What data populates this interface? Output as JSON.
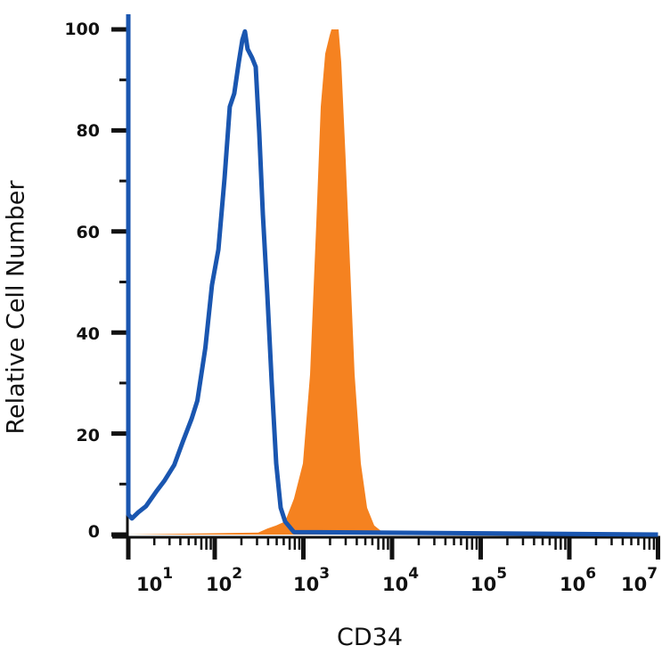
{
  "chart_data": {
    "type": "area",
    "title": "",
    "xlabel": "CD34",
    "ylabel": "Relative Cell Number",
    "x_scale": "log",
    "xlim": [
      10,
      10000000
    ],
    "ylim": [
      0,
      100
    ],
    "grid": false,
    "yticks": [
      "0",
      "20",
      "40",
      "60",
      "80",
      "100"
    ],
    "xticks": [
      {
        "base": "10",
        "exp": "1"
      },
      {
        "base": "10",
        "exp": "2"
      },
      {
        "base": "10",
        "exp": "3"
      },
      {
        "base": "10",
        "exp": "4"
      },
      {
        "base": "10",
        "exp": "5"
      },
      {
        "base": "10",
        "exp": "6"
      },
      {
        "base": "10",
        "exp": "7"
      }
    ],
    "series": [
      {
        "style": "outline",
        "color": "#1a56b0",
        "x": [
          10,
          10,
          11,
          13,
          16,
          21,
          26,
          34,
          43,
          54,
          63,
          78,
          93,
          110,
          129,
          148,
          166,
          187,
          205,
          219,
          235,
          264,
          290,
          318,
          349,
          392,
          440,
          494,
          554,
          622,
          783,
          10000000
        ],
        "y": [
          103,
          4,
          3.2,
          4.4,
          5.6,
          8.5,
          10.6,
          13.8,
          18.5,
          22.9,
          26.5,
          37,
          49.4,
          56.4,
          70.5,
          84.7,
          87.3,
          93.5,
          97.9,
          99.6,
          96.1,
          94.4,
          92.6,
          79.4,
          63.5,
          47.6,
          30,
          14.1,
          5.3,
          2.6,
          0.5,
          0
        ]
      },
      {
        "style": "filled",
        "color": "#f58220",
        "x": [
          10,
          309,
          392,
          494,
          622,
          783,
          988,
          1189,
          1400,
          1571,
          1763,
          1981,
          2074,
          2494,
          2673,
          2999,
          3370,
          3783,
          4448,
          5231,
          6290,
          7921,
          10000
        ],
        "y": [
          0,
          0.4,
          1.2,
          1.8,
          2.6,
          7.1,
          14.1,
          31.7,
          61.7,
          84.7,
          95.2,
          98.8,
          100,
          100,
          93.5,
          74.1,
          52.9,
          31.7,
          14.1,
          5.3,
          1.8,
          0.4,
          0
        ]
      }
    ]
  }
}
